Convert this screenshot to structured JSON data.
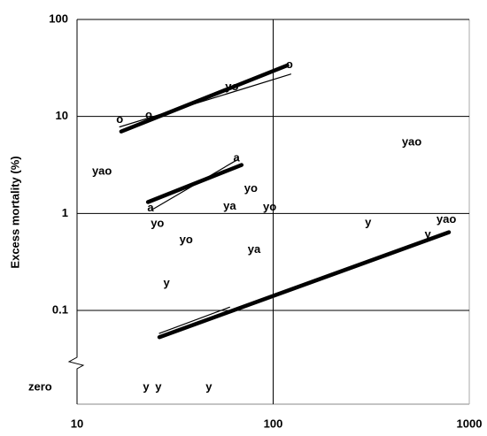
{
  "chart_data": {
    "type": "scatter",
    "y_label": "Excess mortality (%)",
    "log_x": true,
    "log_y": true,
    "grid": true,
    "xlim": [
      10,
      1000
    ],
    "xticks": [
      10,
      100,
      1000
    ],
    "ylim": [
      0.1,
      100
    ],
    "yticks": [
      {
        "value": 0,
        "label": "zero"
      },
      0.1,
      1,
      10,
      100
    ],
    "points": [
      {
        "label": "o",
        "x": 16.5,
        "y": 9.2
      },
      {
        "label": "o",
        "x": 23.2,
        "y": 10.2
      },
      {
        "label": "yo",
        "x": 61.6,
        "y": 20
      },
      {
        "label": "o",
        "x": 121,
        "y": 34
      },
      {
        "label": "a",
        "x": 65,
        "y": 3.7
      },
      {
        "label": "a",
        "x": 23.7,
        "y": 1.13
      },
      {
        "label": "yao",
        "x": 13.4,
        "y": 2.7
      },
      {
        "label": "yo",
        "x": 77,
        "y": 1.8
      },
      {
        "label": "ya",
        "x": 60,
        "y": 1.18
      },
      {
        "label": "yo",
        "x": 96,
        "y": 1.15
      },
      {
        "label": "yo",
        "x": 25.7,
        "y": 0.78
      },
      {
        "label": "yo",
        "x": 36,
        "y": 0.53
      },
      {
        "label": "ya",
        "x": 80,
        "y": 0.42
      },
      {
        "label": "y",
        "x": 28.6,
        "y": 0.19
      },
      {
        "label": "yao",
        "x": 509,
        "y": 5.4
      },
      {
        "label": "y",
        "x": 305,
        "y": 0.8
      },
      {
        "label": "yao",
        "x": 764,
        "y": 0.86
      },
      {
        "label": "y",
        "x": 614,
        "y": 0.6
      },
      {
        "label": "y",
        "x": 22.5,
        "y": 0
      },
      {
        "label": "y",
        "x": 26,
        "y": 0
      },
      {
        "label": "y",
        "x": 47,
        "y": 0
      }
    ],
    "fit_lines": [
      {
        "style": "thick",
        "x": [
          16.8,
          118
        ],
        "y": [
          7.0,
          33.6
        ]
      },
      {
        "style": "thin",
        "x": [
          16.5,
          123
        ],
        "y": [
          7.8,
          27.3
        ]
      },
      {
        "style": "thick",
        "x": [
          23,
          69
        ],
        "y": [
          1.31,
          3.16
        ]
      },
      {
        "style": "thin",
        "x": [
          23.7,
          66
        ],
        "y": [
          1.07,
          3.6
        ]
      },
      {
        "style": "thick",
        "x": [
          26.3,
          787
        ],
        "y": [
          0.053,
          0.64
        ]
      },
      {
        "style": "thin",
        "x": [
          26.3,
          60
        ],
        "y": [
          0.058,
          0.108
        ]
      }
    ]
  }
}
